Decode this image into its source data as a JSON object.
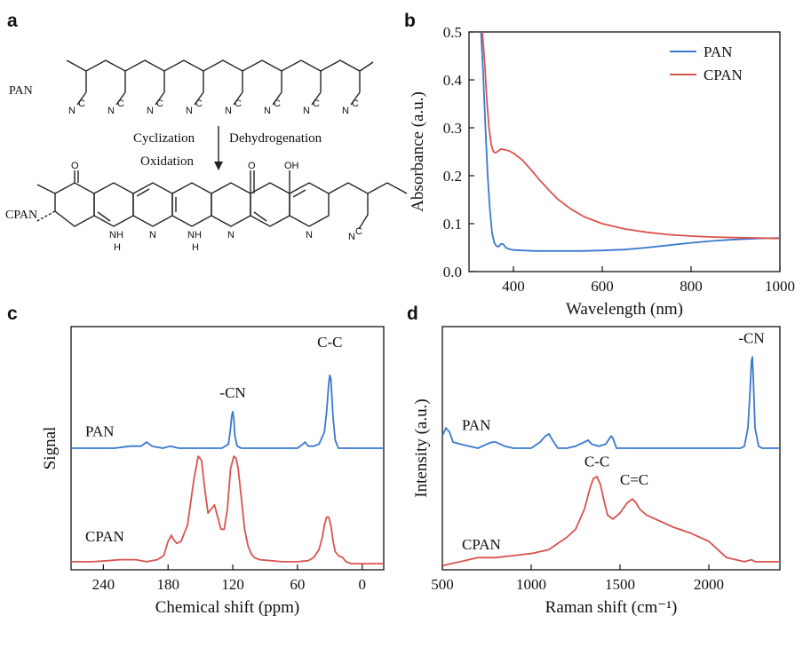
{
  "panels": {
    "a": {
      "label": "a",
      "pan_label": "PAN",
      "cpan_label": "CPAN",
      "nitrile_atoms": {
        "n": "N",
        "c": "C"
      },
      "step_labels": [
        "Cyclization",
        "Oxidation",
        "Dehydrogenation"
      ],
      "atom_labels": {
        "o": "O",
        "oh": "OH",
        "nh": "NH",
        "n": "N",
        "h": "H"
      }
    },
    "b": {
      "label": "b"
    },
    "c": {
      "label": "c"
    },
    "d": {
      "label": "d"
    }
  },
  "colors": {
    "pan": "#3a78d0",
    "cpan": "#d9534f",
    "axis": "#111111"
  },
  "chart_data": [
    {
      "id": "b",
      "type": "line",
      "xlabel": "Wavelength (nm)",
      "ylabel": "Absorbance (a.u.)",
      "xlim": [
        300,
        1000
      ],
      "ylim": [
        0.0,
        0.5
      ],
      "xticks": [
        400,
        600,
        800,
        1000
      ],
      "yticks": [
        0.0,
        0.1,
        0.2,
        0.3,
        0.4,
        0.5
      ],
      "ytick_labels": [
        "0.0",
        "0.1",
        "0.2",
        "0.3",
        "0.4",
        "0.5"
      ],
      "legend": {
        "position": "top-right",
        "entries": [
          "PAN",
          "CPAN"
        ]
      },
      "series": [
        {
          "name": "PAN",
          "color": "#3a78d0",
          "x": [
            327,
            332,
            337,
            342,
            347,
            352,
            357,
            362,
            367,
            372,
            377,
            383,
            390,
            400,
            420,
            450,
            500,
            550,
            600,
            650,
            700,
            750,
            800,
            850,
            900,
            950,
            1000
          ],
          "y": [
            0.5,
            0.41,
            0.3,
            0.2,
            0.13,
            0.08,
            0.06,
            0.053,
            0.052,
            0.058,
            0.057,
            0.05,
            0.047,
            0.045,
            0.044,
            0.043,
            0.043,
            0.043,
            0.044,
            0.046,
            0.05,
            0.055,
            0.06,
            0.064,
            0.067,
            0.069,
            0.07
          ]
        },
        {
          "name": "CPAN",
          "color": "#d9534f",
          "x": [
            330,
            335,
            340,
            345,
            350,
            355,
            360,
            365,
            372,
            380,
            390,
            400,
            420,
            440,
            460,
            480,
            500,
            530,
            560,
            600,
            650,
            700,
            750,
            800,
            850,
            900,
            950,
            1000
          ],
          "y": [
            0.5,
            0.44,
            0.36,
            0.3,
            0.265,
            0.25,
            0.248,
            0.251,
            0.256,
            0.254,
            0.252,
            0.247,
            0.233,
            0.212,
            0.19,
            0.17,
            0.151,
            0.13,
            0.114,
            0.1,
            0.089,
            0.082,
            0.077,
            0.074,
            0.072,
            0.071,
            0.07,
            0.069
          ]
        }
      ]
    },
    {
      "id": "c",
      "type": "line",
      "xlabel": "Chemical shift (ppm)",
      "ylabel": "Signal",
      "xlim": [
        270,
        -20
      ],
      "ylim": [
        0,
        1.2
      ],
      "reversed_x": true,
      "xticks": [
        240,
        180,
        120,
        60,
        0
      ],
      "annotations": [
        {
          "text": "-CN",
          "x": 120,
          "y": 0.85
        },
        {
          "text": "C-C",
          "x": 30,
          "y": 1.1
        }
      ],
      "series": [
        {
          "name": "PAN",
          "color": "#3a78d0",
          "x": [
            270,
            250,
            230,
            215,
            205,
            200,
            195,
            185,
            178,
            170,
            160,
            150,
            140,
            130,
            124,
            122,
            121,
            120,
            119,
            118,
            116,
            112,
            100,
            80,
            60,
            55,
            53,
            50,
            45,
            40,
            35,
            33,
            31,
            30,
            29,
            28,
            27,
            25,
            22,
            18,
            15,
            10,
            0,
            -10,
            -20
          ],
          "y": [
            0.6,
            0.6,
            0.6,
            0.61,
            0.61,
            0.63,
            0.61,
            0.6,
            0.61,
            0.6,
            0.6,
            0.6,
            0.6,
            0.6,
            0.62,
            0.7,
            0.76,
            0.78,
            0.74,
            0.66,
            0.61,
            0.6,
            0.6,
            0.6,
            0.6,
            0.62,
            0.63,
            0.61,
            0.61,
            0.62,
            0.68,
            0.78,
            0.92,
            0.96,
            0.94,
            0.85,
            0.75,
            0.64,
            0.6,
            0.6,
            0.6,
            0.6,
            0.6,
            0.6,
            0.6
          ]
        },
        {
          "name": "CPAN",
          "color": "#d9534f",
          "x": [
            270,
            250,
            235,
            225,
            210,
            200,
            190,
            184,
            180,
            177,
            175,
            172,
            168,
            162,
            156,
            152,
            149,
            146,
            143,
            140,
            137,
            134,
            131,
            128,
            125,
            122,
            119,
            117,
            115,
            112,
            109,
            106,
            103,
            100,
            95,
            85,
            75,
            60,
            50,
            45,
            40,
            37,
            35,
            33,
            31,
            29,
            27,
            25,
            22,
            18,
            15,
            10,
            0,
            -10,
            -20
          ],
          "y": [
            0.04,
            0.04,
            0.045,
            0.05,
            0.05,
            0.04,
            0.05,
            0.07,
            0.14,
            0.17,
            0.15,
            0.13,
            0.14,
            0.22,
            0.45,
            0.56,
            0.54,
            0.4,
            0.28,
            0.3,
            0.32,
            0.26,
            0.2,
            0.2,
            0.3,
            0.5,
            0.56,
            0.55,
            0.5,
            0.35,
            0.2,
            0.12,
            0.08,
            0.06,
            0.05,
            0.045,
            0.04,
            0.04,
            0.045,
            0.06,
            0.1,
            0.16,
            0.22,
            0.26,
            0.26,
            0.22,
            0.14,
            0.09,
            0.07,
            0.06,
            0.04,
            0.03,
            0.03,
            0.03,
            0.03
          ]
        }
      ],
      "labels": [
        "PAN",
        "CPAN"
      ]
    },
    {
      "id": "d",
      "type": "line",
      "xlabel": "Raman shift (cm⁻¹)",
      "ylabel": "Intensity (a.u.)",
      "xlim": [
        500,
        2400
      ],
      "ylim": [
        0,
        1.2
      ],
      "xticks": [
        500,
        1000,
        1500,
        2000
      ],
      "annotations": [
        {
          "text": "-CN",
          "x": 2240,
          "y": 1.12
        },
        {
          "text": "C-C",
          "x": 1370,
          "y": 0.51
        },
        {
          "text": "C=C",
          "x": 1580,
          "y": 0.42
        }
      ],
      "series": [
        {
          "name": "PAN",
          "color": "#3a78d0",
          "x": [
            500,
            520,
            540,
            560,
            600,
            650,
            700,
            750,
            780,
            800,
            850,
            900,
            950,
            1000,
            1050,
            1080,
            1100,
            1120,
            1150,
            1200,
            1250,
            1300,
            1320,
            1340,
            1380,
            1420,
            1450,
            1460,
            1480,
            1550,
            1600,
            1700,
            1800,
            1900,
            2000,
            2100,
            2180,
            2200,
            2220,
            2230,
            2240,
            2245,
            2250,
            2260,
            2280,
            2300,
            2400
          ],
          "y": [
            0.66,
            0.7,
            0.68,
            0.63,
            0.62,
            0.61,
            0.6,
            0.62,
            0.63,
            0.63,
            0.61,
            0.6,
            0.6,
            0.6,
            0.63,
            0.66,
            0.67,
            0.64,
            0.6,
            0.6,
            0.61,
            0.63,
            0.64,
            0.62,
            0.61,
            0.62,
            0.66,
            0.65,
            0.6,
            0.6,
            0.6,
            0.6,
            0.6,
            0.6,
            0.6,
            0.6,
            0.6,
            0.61,
            0.7,
            0.85,
            1.03,
            1.05,
            0.95,
            0.7,
            0.61,
            0.6,
            0.6
          ]
        },
        {
          "name": "CPAN",
          "color": "#d9534f",
          "x": [
            500,
            600,
            700,
            800,
            900,
            1000,
            1100,
            1150,
            1200,
            1250,
            1300,
            1330,
            1350,
            1370,
            1390,
            1410,
            1430,
            1460,
            1500,
            1540,
            1570,
            1590,
            1610,
            1650,
            1700,
            1800,
            1900,
            2000,
            2050,
            2100,
            2200,
            2240,
            2260,
            2300,
            2400
          ],
          "y": [
            0.02,
            0.04,
            0.06,
            0.06,
            0.07,
            0.08,
            0.1,
            0.13,
            0.16,
            0.2,
            0.3,
            0.4,
            0.45,
            0.46,
            0.42,
            0.34,
            0.27,
            0.25,
            0.28,
            0.33,
            0.35,
            0.33,
            0.3,
            0.27,
            0.25,
            0.21,
            0.18,
            0.14,
            0.1,
            0.06,
            0.04,
            0.05,
            0.04,
            0.04,
            0.04
          ]
        }
      ],
      "labels": [
        "PAN",
        "CPAN"
      ]
    }
  ]
}
